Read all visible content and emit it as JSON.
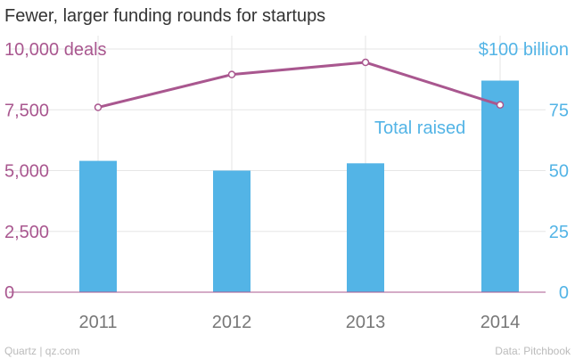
{
  "colors": {
    "deals": "#a9578f",
    "raised": "#53b4e6",
    "grid": "#e6e6e6",
    "baseline": "#a9578f"
  },
  "chart_data": {
    "type": "bar",
    "title": "Fewer, larger funding rounds for startups",
    "categories": [
      "2011",
      "2012",
      "2013",
      "2014"
    ],
    "series": [
      {
        "name": "Total raised",
        "type": "bar",
        "axis": "right",
        "values": [
          54,
          50,
          53,
          87
        ]
      },
      {
        "name": "",
        "type": "line",
        "axis": "left",
        "values": [
          7600,
          8950,
          9450,
          7700
        ]
      }
    ],
    "y_left": {
      "label": "deals",
      "range": [
        0,
        10000
      ],
      "ticks": [
        "0",
        "2,500",
        "5,000",
        "7,500",
        "10,000 deals"
      ]
    },
    "y_right": {
      "label": "billion",
      "range": [
        0,
        100
      ],
      "ticks": [
        "0",
        "25",
        "50",
        "75",
        "$100 billion"
      ]
    },
    "annotations": [
      "Total raised"
    ],
    "grid": true
  },
  "footer": {
    "source_left": "Quartz | qz.com",
    "source_right": "Data: Pitchbook"
  }
}
